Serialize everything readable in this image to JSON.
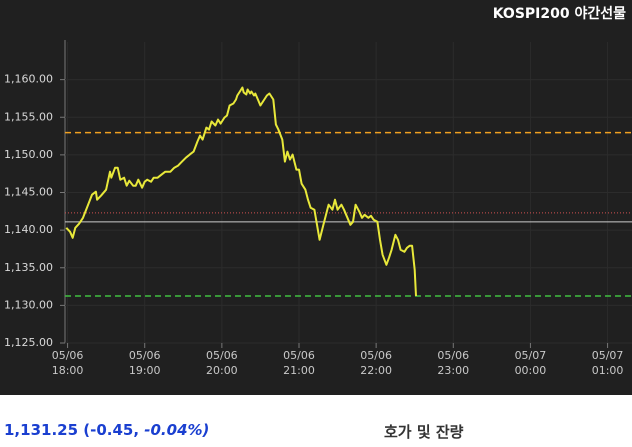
{
  "chart_data": {
    "type": "line",
    "title": "KOSPI200 야간선물",
    "x": [
      "05/06 17:59",
      "05/06 18:02",
      "05/06 18:04",
      "05/06 18:06",
      "05/06 18:09",
      "05/06 18:12",
      "05/06 18:16",
      "05/06 18:19",
      "05/06 18:22",
      "05/06 18:23",
      "05/06 18:26",
      "05/06 18:30",
      "05/06 18:33",
      "05/06 18:34",
      "05/06 18:37",
      "05/06 18:39",
      "05/06 18:41",
      "05/06 18:44",
      "05/06 18:46",
      "05/06 18:48",
      "05/06 18:51",
      "05/06 18:53",
      "05/06 18:55",
      "05/06 18:58",
      "05/06 19:00",
      "05/06 19:02",
      "05/06 19:05",
      "05/06 19:07",
      "05/06 19:10",
      "05/06 19:13",
      "05/06 19:16",
      "05/06 19:20",
      "05/06 19:23",
      "05/06 19:26",
      "05/06 19:29",
      "05/06 19:32",
      "05/06 19:35",
      "05/06 19:38",
      "05/06 19:41",
      "05/06 19:43",
      "05/06 19:45",
      "05/06 19:48",
      "05/06 19:50",
      "05/06 19:52",
      "05/06 19:55",
      "05/06 19:57",
      "05/06 19:59",
      "05/06 20:02",
      "05/06 20:04",
      "05/06 20:06",
      "05/06 20:09",
      "05/06 20:11",
      "05/06 20:12",
      "05/06 20:14",
      "05/06 20:16",
      "05/06 20:17",
      "05/06 20:19",
      "05/06 20:20",
      "05/06 20:22",
      "05/06 20:23",
      "05/06 20:25",
      "05/06 20:26",
      "05/06 20:28",
      "05/06 20:30",
      "05/06 20:33",
      "05/06 20:35",
      "05/06 20:37",
      "05/06 20:40",
      "05/06 20:42",
      "05/06 20:44",
      "05/06 20:47",
      "05/06 20:49",
      "05/06 20:51",
      "05/06 20:53",
      "05/06 20:55",
      "05/06 20:58",
      "05/06 21:00",
      "05/06 21:02",
      "05/06 21:05",
      "05/06 21:07",
      "05/06 21:09",
      "05/06 21:12",
      "05/06 21:14",
      "05/06 21:16",
      "05/06 21:19",
      "05/06 21:21",
      "05/06 21:23",
      "05/06 21:26",
      "05/06 21:28",
      "05/06 21:30",
      "05/06 21:33",
      "05/06 21:35",
      "05/06 21:37",
      "05/06 21:40",
      "05/06 21:42",
      "05/06 21:44",
      "05/06 21:47",
      "05/06 21:49",
      "05/06 21:51",
      "05/06 21:54",
      "05/06 21:56",
      "05/06 21:58",
      "05/06 22:01",
      "05/06 22:03",
      "05/06 22:05",
      "05/06 22:08",
      "05/06 22:10",
      "05/06 22:12",
      "05/06 22:15",
      "05/06 22:17",
      "05/06 22:19",
      "05/06 22:22",
      "05/06 22:24",
      "05/06 22:26",
      "05/06 22:28",
      "05/06 22:30",
      "05/06 22:31"
    ],
    "series": [
      {
        "color": "#e8e83a",
        "values": [
          1140.31,
          1139.78,
          1138.98,
          1140.31,
          1140.85,
          1141.64,
          1143.38,
          1144.71,
          1145.11,
          1144.04,
          1144.57,
          1145.37,
          1147.77,
          1146.97,
          1148.3,
          1148.3,
          1146.7,
          1146.97,
          1145.91,
          1146.57,
          1145.91,
          1145.91,
          1146.7,
          1145.64,
          1146.44,
          1146.7,
          1146.44,
          1146.97,
          1146.97,
          1147.37,
          1147.77,
          1147.77,
          1148.3,
          1148.57,
          1149.1,
          1149.63,
          1150.03,
          1150.43,
          1151.77,
          1152.56,
          1152.03,
          1153.63,
          1153.36,
          1154.43,
          1153.9,
          1154.69,
          1154.16,
          1154.96,
          1155.23,
          1156.56,
          1156.83,
          1157.36,
          1157.89,
          1158.42,
          1158.96,
          1158.29,
          1158.02,
          1158.69,
          1158.16,
          1158.42,
          1157.89,
          1158.16,
          1157.36,
          1156.56,
          1157.36,
          1157.89,
          1158.16,
          1157.36,
          1154.03,
          1153.36,
          1152.03,
          1149.1,
          1150.43,
          1149.37,
          1150.03,
          1148.04,
          1148.04,
          1146.17,
          1145.37,
          1144.04,
          1142.98,
          1142.71,
          1140.71,
          1138.72,
          1140.71,
          1142.04,
          1143.38,
          1142.71,
          1144.04,
          1142.71,
          1143.38,
          1142.71,
          1141.91,
          1140.71,
          1141.11,
          1143.38,
          1142.44,
          1141.64,
          1142.04,
          1141.64,
          1141.91,
          1141.38,
          1141.11,
          1138.72,
          1136.72,
          1135.39,
          1136.32,
          1137.38,
          1139.38,
          1138.72,
          1137.38,
          1137.12,
          1137.65,
          1137.92,
          1137.92,
          1134.72,
          1131.25
        ]
      }
    ],
    "reference_lines": [
      {
        "value": 1152.96,
        "color": "#f0a020",
        "style": "dashed"
      },
      {
        "value": 1142.3,
        "color": "#d05050",
        "style": "dotted"
      },
      {
        "value": 1141.1,
        "color": "#cccccc",
        "style": "solid"
      },
      {
        "value": 1131.25,
        "color": "#40c040",
        "style": "dashed"
      }
    ],
    "xlim": [
      "05/06 17:58",
      "05/07 01:19"
    ],
    "xticks": [
      {
        "value": "05/06 18:00",
        "label": "05/06\n18:00"
      },
      {
        "value": "05/06 19:00",
        "label": "05/06\n19:00"
      },
      {
        "value": "05/06 20:00",
        "label": "05/06\n20:00"
      },
      {
        "value": "05/06 21:00",
        "label": "05/06\n21:00"
      },
      {
        "value": "05/06 22:00",
        "label": "05/06\n22:00"
      },
      {
        "value": "05/06 23:00",
        "label": "05/06\n23:00"
      },
      {
        "value": "05/07 00:00",
        "label": "05/07\n00:00"
      },
      {
        "value": "05/07 01:00",
        "label": "05/07\n01:00"
      }
    ],
    "ylim": [
      1125,
      1165
    ],
    "yticks": [
      {
        "value": 1125,
        "label": "1,125.00"
      },
      {
        "value": 1130,
        "label": "1,130.00"
      },
      {
        "value": 1135,
        "label": "1,135.00"
      },
      {
        "value": 1140,
        "label": "1,140.00"
      },
      {
        "value": 1145,
        "label": "1,145.00"
      },
      {
        "value": 1150,
        "label": "1,150.00"
      },
      {
        "value": 1155,
        "label": "1,155.00"
      },
      {
        "value": 1160,
        "label": "1,160.00"
      }
    ],
    "grid": true
  },
  "footer": {
    "quote_main": "1,131.25 (-0.45,",
    "quote_pct": "-0.04%)",
    "section": "호가 및 잔량"
  }
}
